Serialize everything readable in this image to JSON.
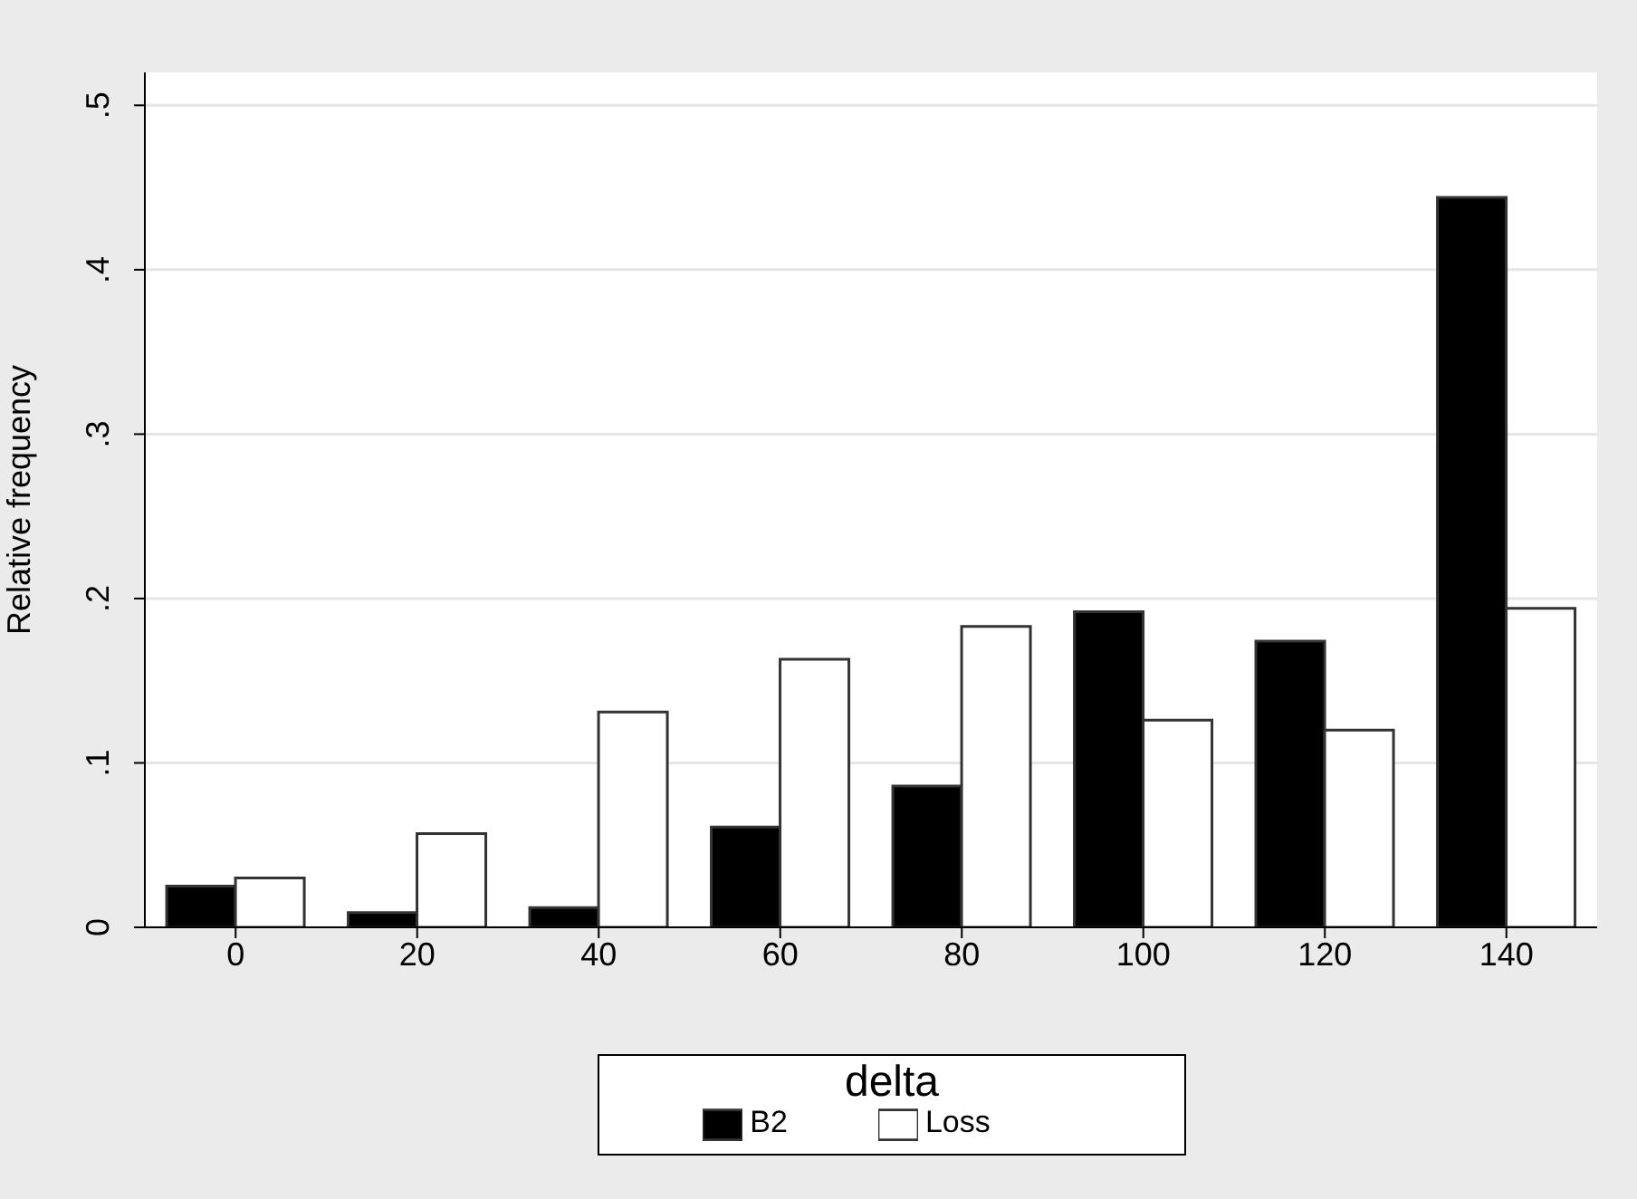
{
  "chart_data": {
    "type": "bar",
    "xlabel": null,
    "ylabel": "Relative frequency",
    "legend_title": "delta",
    "legend": "bottom",
    "grid": "y",
    "categories": [
      "0",
      "20",
      "40",
      "60",
      "80",
      "100",
      "120",
      "140"
    ],
    "series": [
      {
        "name": "B2",
        "color": "#000000",
        "values": [
          0.025,
          0.009,
          0.012,
          0.061,
          0.086,
          0.192,
          0.174,
          0.444
        ]
      },
      {
        "name": "Loss",
        "color": "#ffffff",
        "values": [
          0.03,
          0.057,
          0.131,
          0.163,
          0.183,
          0.126,
          0.12,
          0.194
        ]
      }
    ],
    "ylim": [
      0,
      0.52
    ],
    "yticks": [
      {
        "value": 0,
        "label": "0"
      },
      {
        "value": 0.1,
        "label": ".1"
      },
      {
        "value": 0.2,
        "label": ".2"
      },
      {
        "value": 0.3,
        "label": ".3"
      },
      {
        "value": 0.4,
        "label": ".4"
      },
      {
        "value": 0.5,
        "label": ".5"
      }
    ]
  }
}
